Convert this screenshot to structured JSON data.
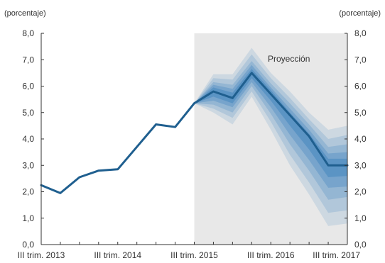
{
  "chart_data": {
    "type": "line",
    "title": "",
    "xlabel": "",
    "y_unit_left": "(porcentaje)",
    "y_unit_right": "(porcentaje)",
    "ylim": [
      0,
      8
    ],
    "y_ticks": [
      "0,0",
      "1,0",
      "2,0",
      "3,0",
      "4,0",
      "5,0",
      "6,0",
      "7,0",
      "8,0"
    ],
    "x_tick_labels": [
      "III trim. 2013",
      "III trim. 2014",
      "III trim. 2015",
      "III trim. 2016",
      "III trim. 2017"
    ],
    "projection_label": "Proyección",
    "projection_start_index": 8,
    "grid": false,
    "colors": {
      "line": "#1f5f8f",
      "band": "#2a78b8",
      "projection_bg": "#e8e8e8",
      "axis": "#333333"
    },
    "series": [
      {
        "values": [
          2.25,
          1.95,
          2.55,
          2.8,
          2.85,
          3.7,
          4.55,
          4.45,
          5.35,
          5.8,
          5.55,
          6.5,
          5.7,
          4.9,
          4.1,
          3.0,
          3.0
        ]
      }
    ],
    "fan": {
      "start_index": 8,
      "levels": [
        {
          "low": [
            5.35,
            5.0,
            4.55,
            5.6,
            4.35,
            3.0,
            1.9,
            0.7,
            0.8
          ],
          "high": [
            5.35,
            6.45,
            6.45,
            7.45,
            6.5,
            5.8,
            5.0,
            4.35,
            4.5
          ]
        },
        {
          "low": [
            5.35,
            5.15,
            4.8,
            5.8,
            4.65,
            3.4,
            2.35,
            1.2,
            1.3
          ],
          "high": [
            5.35,
            6.3,
            6.25,
            7.2,
            6.3,
            5.55,
            4.75,
            4.0,
            4.15
          ]
        },
        {
          "low": [
            5.35,
            5.3,
            5.0,
            6.0,
            4.95,
            3.8,
            2.8,
            1.7,
            1.8
          ],
          "high": [
            5.35,
            6.15,
            6.05,
            6.95,
            6.1,
            5.35,
            4.55,
            3.7,
            3.8
          ]
        },
        {
          "low": [
            5.35,
            5.45,
            5.2,
            6.15,
            5.2,
            4.15,
            3.2,
            2.15,
            2.2
          ],
          "high": [
            5.35,
            6.05,
            5.9,
            6.8,
            5.95,
            5.15,
            4.35,
            3.45,
            3.5
          ]
        },
        {
          "low": [
            5.35,
            5.6,
            5.35,
            6.3,
            5.45,
            4.5,
            3.6,
            2.55,
            2.6
          ],
          "high": [
            5.35,
            5.95,
            5.75,
            6.65,
            5.85,
            5.0,
            4.2,
            3.25,
            3.25
          ]
        }
      ]
    }
  }
}
